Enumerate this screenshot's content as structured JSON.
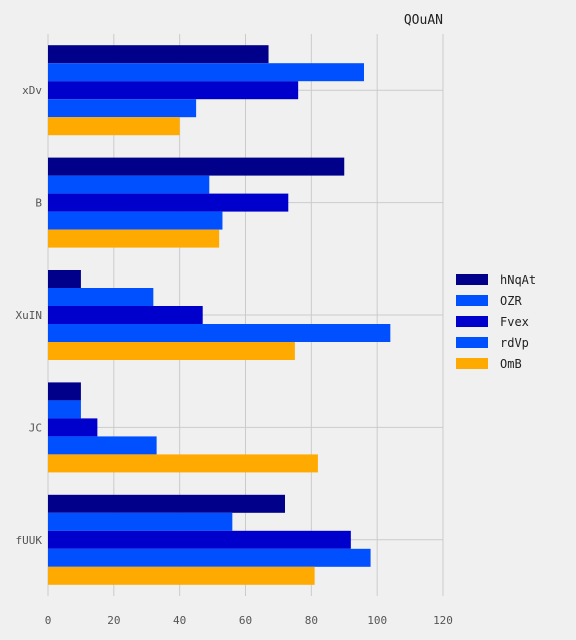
{
  "chart_data": {
    "type": "bar",
    "orientation": "horizontal",
    "title": "QOuAN",
    "xlabel": "",
    "ylabel": "",
    "xlim": [
      0,
      120
    ],
    "xticks": [
      0,
      20,
      40,
      60,
      80,
      100,
      120
    ],
    "grid": true,
    "legend_position": "right",
    "categories": [
      "xDv",
      "B",
      "XuIN",
      "JC",
      "fUUK"
    ],
    "series": [
      {
        "name": "hNqAt",
        "color": "#00008b",
        "values": [
          67,
          90,
          10,
          10,
          72
        ]
      },
      {
        "name": "OZR",
        "color": "#0050ff",
        "values": [
          96,
          49,
          32,
          10,
          56
        ]
      },
      {
        "name": "Fvex",
        "color": "#0000cd",
        "values": [
          76,
          73,
          47,
          15,
          92
        ]
      },
      {
        "name": "rdVp",
        "color": "#0050ff",
        "values": [
          45,
          53,
          104,
          33,
          98
        ]
      },
      {
        "name": "OmB",
        "color": "#ffaa00",
        "values": [
          40,
          52,
          75,
          82,
          81
        ]
      }
    ]
  }
}
